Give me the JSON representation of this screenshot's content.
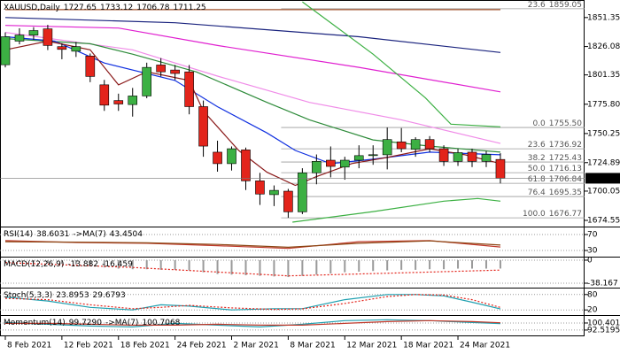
{
  "chart_data": [
    {
      "type": "candlestick",
      "title": "XAUUSD,Daily",
      "categories": [
        "8 Feb 2021",
        null,
        null,
        null,
        "12 Feb 2021",
        null,
        null,
        null,
        "18 Feb 2021",
        null,
        null,
        null,
        "24 Feb 2021",
        null,
        null,
        null,
        "2 Mar 2021",
        null,
        null,
        null,
        "8 Mar 2021",
        null,
        null,
        null,
        "12 Mar 2021",
        null,
        null,
        null,
        "18 Mar 2021",
        null,
        null,
        null,
        "24 Mar 2021",
        null,
        null,
        null
      ],
      "open": [
        1810.2,
        1830.8,
        1836,
        1841.5,
        1826,
        1822,
        1817.8,
        1792.7,
        1779,
        1775.5,
        1783,
        1810,
        1805.6,
        1804,
        1773.7,
        1734,
        1724,
        1736,
        1709,
        1697,
        1700,
        1682,
        1716,
        1727,
        1721,
        1727,
        1731,
        1731.7,
        1743,
        1736.5,
        1745,
        1737,
        1726,
        1734,
        1726,
        1727.65
      ],
      "high": [
        1838.4,
        1842,
        1843,
        1845,
        1829,
        1830,
        1820,
        1797,
        1785,
        1790,
        1812,
        1816,
        1810,
        1810,
        1779,
        1744,
        1739,
        1738,
        1716,
        1705,
        1702,
        1720,
        1732,
        1739,
        1730,
        1740,
        1740,
        1755.5,
        1755,
        1747,
        1748,
        1740,
        1737,
        1737,
        1735,
        1733.12
      ],
      "low": [
        1807.9,
        1828,
        1832,
        1823,
        1815,
        1817,
        1795,
        1770,
        1770,
        1765,
        1781,
        1800,
        1797,
        1767,
        1730,
        1717,
        1718,
        1701,
        1688,
        1687,
        1676.8,
        1680,
        1706,
        1712,
        1710,
        1720,
        1723,
        1719,
        1734,
        1730,
        1734,
        1722,
        1722,
        1721,
        1721,
        1706.78
      ],
      "close": [
        1834.6,
        1836.1,
        1840,
        1827,
        1823.6,
        1826,
        1800,
        1775,
        1776,
        1783,
        1807.9,
        1804,
        1802.6,
        1773.7,
        1739.3,
        1724,
        1737,
        1709,
        1697.5,
        1700.7,
        1682,
        1716,
        1726,
        1721.6,
        1727,
        1731,
        1731.8,
        1745,
        1737,
        1745,
        1737,
        1726,
        1733.6,
        1726,
        1732,
        1711.25
      ],
      "up_color": "#3cb043",
      "down_color": "#e3241b",
      "ylim": [
        1670.7,
        1865.1
      ],
      "yticks": [
        1851.35,
        1826.08,
        1801.35,
        {
          "value": 1775.8,
          "label": "1775.80"
        },
        1750.25,
        1724.89,
        1700.05,
        1674.55
      ],
      "overlays": [
        {
          "color": "#a0522d",
          "x": [
            0,
            35
          ],
          "values": [
            1858.2,
            1858.2
          ]
        },
        {
          "color": "#1a237e",
          "x": [
            0,
            12,
            25,
            35
          ],
          "values": [
            1851.4,
            1846.8,
            1834.6,
            1820.9
          ]
        },
        {
          "color": "#e020d0",
          "x": [
            0,
            8,
            15,
            25,
            35
          ],
          "values": [
            1844.5,
            1842.2,
            1827,
            1807.9,
            1786.6
          ]
        },
        {
          "color": "#f08ce8",
          "x": [
            0,
            9,
            15,
            21.5,
            28,
            35
          ],
          "values": [
            1838.4,
            1823.2,
            1800.3,
            1777.4,
            1762.2,
            1741.6
          ]
        },
        {
          "color": "#2e8b3a",
          "x": [
            0,
            6,
            9,
            13.5,
            18.5,
            21.5,
            26,
            30,
            35
          ],
          "values": [
            1833,
            1828.5,
            1819.4,
            1804,
            1777.4,
            1762.2,
            1744.7,
            1739.3,
            1734
          ]
        },
        {
          "color": "#1030e0",
          "x": [
            0,
            3.5,
            7,
            12,
            15,
            18.5,
            20.5,
            23,
            26,
            30,
            35
          ],
          "values": [
            1834.6,
            1830.8,
            1811.7,
            1796.5,
            1773.6,
            1750.8,
            1735.5,
            1724,
            1727.9,
            1734,
            1731.7
          ]
        },
        {
          "color": "#8b1a1a",
          "x": [
            0,
            3,
            6,
            8,
            10,
            13,
            14,
            16.5,
            18.5,
            20.5,
            22,
            24.5,
            27,
            30,
            32.5,
            35
          ],
          "values": [
            1823.2,
            1830.8,
            1823.2,
            1792.7,
            1804.1,
            1796.5,
            1769.8,
            1735.5,
            1716.5,
            1705,
            1712.7,
            1724.1,
            1729.4,
            1737,
            1731.7,
            1724.1
          ]
        },
        {
          "color": "#3cb043",
          "x": [
            21,
            26,
            29.7,
            31.5,
            35
          ],
          "values": [
            1865,
            1819.4,
            1781.3,
            1758.4,
            1756.1
          ]
        },
        {
          "color": "#3cb043",
          "x": [
            20.3,
            26,
            31,
            33.4,
            35
          ],
          "values": [
            1673,
            1682.2,
            1691.3,
            1693.6,
            1691.3
          ]
        }
      ],
      "fibonacci": [
        {
          "ratio": "23.6",
          "price": 1859.05
        },
        {
          "ratio": "0.0",
          "price": {
            "value": 1755.5,
            "label": "1755.50"
          }
        },
        {
          "ratio": "23.6",
          "price": 1736.92
        },
        {
          "ratio": "38.2",
          "price": 1725.43
        },
        {
          "ratio": "50.0",
          "price": 1716.13
        },
        {
          "ratio": "61.8",
          "price": 1706.84
        },
        {
          "ratio": "76.4",
          "price": 1695.35
        },
        {
          "ratio": "100.0",
          "price": 1676.77
        }
      ]
    },
    {
      "type": "line",
      "indicator": "RSI(14)",
      "ma_label": "->MA(7)",
      "ylim": [
        14.4,
        85.6
      ],
      "yticks": [
        70,
        30
      ],
      "series": [
        {
          "color": "#c0392b",
          "x": [
            0,
            5,
            10,
            15,
            20,
            25,
            30,
            35
          ],
          "values": [
            55,
            50,
            48,
            42,
            35,
            52,
            55,
            38.6031
          ]
        },
        {
          "color": "#8b4513",
          "x": [
            0,
            5,
            10,
            15,
            20,
            25,
            30,
            35
          ],
          "values": [
            52,
            51,
            49,
            45,
            38,
            48,
            54,
            43.4504
          ]
        }
      ]
    },
    {
      "type": "bar",
      "indicator": "MACD(12,26,9)",
      "ylim": [
        -45.5,
        2.9
      ],
      "yticks": [
        0,
        -38.167
      ],
      "color": "#9a9a9a",
      "values": [
        -2,
        -3,
        -4,
        -5,
        -6,
        -7,
        -9,
        -12,
        -14,
        -15,
        -15,
        -16,
        -16,
        -17,
        -20,
        -23,
        -24,
        -25,
        -26,
        -27,
        -28,
        -26,
        -24,
        -22,
        -20,
        -19,
        -18,
        -17,
        -16,
        -16,
        -15,
        -15,
        -14,
        -14,
        -14,
        -13.882
      ],
      "signal": {
        "color": "#e3241b",
        "x": [
          0,
          9,
          20,
          28,
          35
        ],
        "values": [
          -4,
          -12,
          -26,
          -21,
          -16.459
        ]
      }
    },
    {
      "type": "line",
      "indicator": "Stoch(5,3,3)",
      "ylim": [
        0,
        100
      ],
      "yticks": [
        80,
        20
      ],
      "series": [
        {
          "color": "#20a0b0",
          "x": [
            0,
            3,
            6,
            9,
            11,
            13,
            16,
            19,
            21,
            24,
            27,
            29,
            31,
            33,
            35
          ],
          "values": [
            70,
            55,
            30,
            20,
            40,
            35,
            20,
            25,
            25,
            60,
            80,
            80,
            75,
            50,
            23.8953
          ]
        },
        {
          "color": "#e3241b",
          "dash": true,
          "x": [
            0,
            3,
            6,
            9,
            11,
            13,
            16,
            19,
            21,
            24,
            27,
            29,
            31,
            33,
            35
          ],
          "values": [
            65,
            60,
            40,
            25,
            30,
            38,
            28,
            22,
            24,
            45,
            72,
            80,
            78,
            60,
            29.6793
          ]
        }
      ]
    },
    {
      "type": "line",
      "indicator": "Momentum(14)",
      "ma_label": "->MA(7)",
      "ylim": [
        87.5,
        107.3
      ],
      "yticks": [
        100.4012,
        92.5195
      ],
      "series": [
        {
          "color": "#20a0b0",
          "x": [
            0,
            3,
            6,
            9,
            12,
            15,
            18,
            21,
            24,
            27,
            30,
            33,
            35
          ],
          "values": [
            101,
            99,
            97,
            96,
            100,
            98,
            96,
            99,
            103,
            104,
            103,
            101,
            99.729
          ],
          "value_labels": [
            null,
            null,
            null,
            null,
            null,
            null,
            null,
            null,
            null,
            null,
            null,
            null,
            "99.7290"
          ]
        },
        {
          "color": "#c0392b",
          "x": [
            0,
            3,
            6,
            9,
            12,
            15,
            18,
            21,
            24,
            27,
            30,
            33,
            35
          ],
          "values": [
            100,
            100,
            99,
            98,
            98,
            99,
            98,
            98,
            100,
            102,
            103,
            102,
            100.7068
          ]
        }
      ]
    }
  ]
}
